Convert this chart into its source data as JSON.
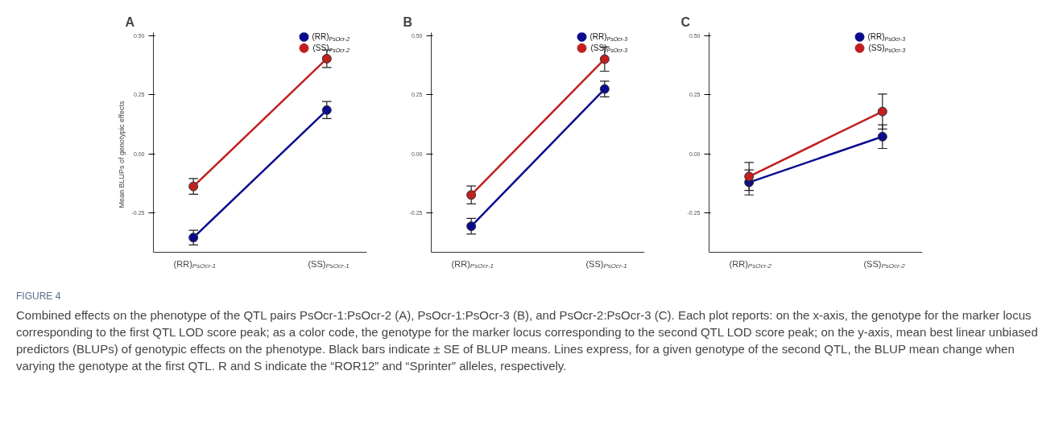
{
  "chart_data": [
    {
      "type": "line",
      "title": "A",
      "ylabel": "Mean BLUPs of genotypic effects",
      "categories": [
        "(RR)$_{PsOcr-1}$",
        "(SS)$_{PsOcr-1}$"
      ],
      "ylim": [
        -0.415,
        0.512
      ],
      "yticks": [
        {
          "value": -0.25,
          "label": "-0.25"
        },
        {
          "value": 0,
          "label": "0.00"
        },
        {
          "value": 0.25,
          "label": "0.25"
        },
        {
          "value": 0.5,
          "label": "0.50"
        }
      ],
      "legend": "top right",
      "marker": "circle",
      "series": [
        {
          "name": "(RR)$_{PsOcr-2}$",
          "color": "#0b0b8f",
          "values": [
            -0.353,
            0.185
          ],
          "errors": [
            0.031,
            0.036
          ]
        },
        {
          "name": "(SS)$_{PsOcr-2}$",
          "color": "#c0201f",
          "values": [
            -0.137,
            0.402
          ],
          "errors": [
            0.033,
            0.037
          ]
        }
      ],
      "annotations": [
        "FIGURE 4",
        "Combined effects on the phenotype of the QTL pairs PsOcr-1:PsOcr-2 (A), PsOcr-1:PsOcr-3 (B), and PsOcr-2:PsOcr-3 (C). Each plot reports: on the x-axis, the genotype for the marker locus corresponding to the first QTL LOD score peak; as a color code, the genotype for the marker locus corresponding to the second QTL LOD score peak; on the y-axis, mean best linear unbiased predictors (BLUPs) of genotypic effects on the phenotype. Black bars indicate ± SE of BLUP means. Lines express, for a given genotype of the second QTL, the BLUP mean change when varying the genotype at the first QTL. R and S indicate the “ROR12” and “Sprinter” alleles, respectively."
      ]
    },
    {
      "type": "line",
      "title": "B",
      "categories": [
        "(RR)$_{PsOcr-1}$",
        "(SS)$_{PsOcr-1}$"
      ],
      "ylim": [
        -0.415,
        0.512
      ],
      "yticks": [
        {
          "value": -0.25,
          "label": "-0.25"
        },
        {
          "value": 0,
          "label": "0.00"
        },
        {
          "value": 0.25,
          "label": "0.25"
        },
        {
          "value": 0.5,
          "label": "0.50"
        }
      ],
      "legend": "top right",
      "marker": "circle",
      "series": [
        {
          "name": "(RR)$_{PsOcr-3}$",
          "color": "#0b0b8f",
          "values": [
            -0.305,
            0.274
          ],
          "errors": [
            0.033,
            0.033
          ]
        },
        {
          "name": "(SS)$_{PsOcr-3}$",
          "color": "#c0201f",
          "values": [
            -0.173,
            0.4
          ],
          "errors": [
            0.038,
            0.051
          ]
        }
      ]
    },
    {
      "type": "line",
      "title": "C",
      "categories": [
        "(RR)$_{PsOcr-2}$",
        "(SS)$_{PsOcr-2}$"
      ],
      "ylim": [
        -0.415,
        0.512
      ],
      "yticks": [
        {
          "value": -0.25,
          "label": "-0.25"
        },
        {
          "value": 0,
          "label": "0.00"
        },
        {
          "value": 0.25,
          "label": "0.25"
        },
        {
          "value": 0.5,
          "label": "0.50"
        }
      ],
      "legend": "top right",
      "marker": "circle",
      "series": [
        {
          "name": "(RR)$_{PsOcr-3}$",
          "color": "#0b0b8f",
          "values": [
            -0.12,
            0.073
          ],
          "errors": [
            0.053,
            0.05
          ]
        },
        {
          "name": "(SS)$_{PsOcr-3}$",
          "color": "#c0201f",
          "values": [
            -0.095,
            0.179
          ],
          "errors": [
            0.059,
            0.074
          ]
        }
      ]
    }
  ]
}
